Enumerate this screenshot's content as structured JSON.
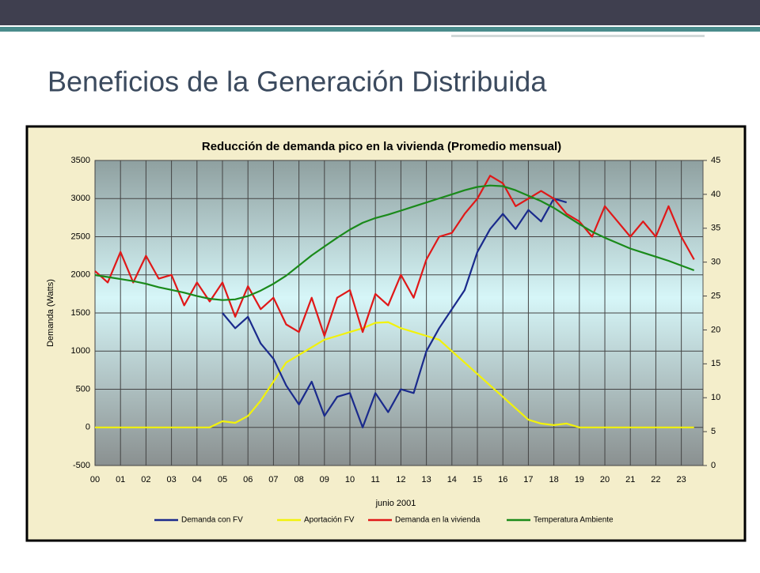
{
  "slide_title": "Beneficios de la Generación Distribuida",
  "chart_data": {
    "type": "line",
    "title": "Reducción de demanda pico en la vivienda (Promedio mensual)",
    "ylabel": "Demanda (Watts)",
    "xlabel": "junio 2001",
    "grid": true,
    "legend": "bottom",
    "xlim": [
      0,
      23.85
    ],
    "xticks": [
      {
        "value": 0,
        "label": "00"
      },
      {
        "value": 1,
        "label": "01"
      },
      {
        "value": 2,
        "label": "02"
      },
      {
        "value": 3,
        "label": "03"
      },
      {
        "value": 4,
        "label": "04"
      },
      {
        "value": 5,
        "label": "05"
      },
      {
        "value": 6,
        "label": "06"
      },
      {
        "value": 7,
        "label": "07"
      },
      {
        "value": 8,
        "label": "08"
      },
      {
        "value": 9,
        "label": "09"
      },
      {
        "value": 10,
        "label": "10"
      },
      {
        "value": 11,
        "label": "11"
      },
      {
        "value": 12,
        "label": "12"
      },
      {
        "value": 13,
        "label": "13"
      },
      {
        "value": 14,
        "label": "14"
      },
      {
        "value": 15,
        "label": "15"
      },
      {
        "value": 16,
        "label": "16"
      },
      {
        "value": 17,
        "label": "17"
      },
      {
        "value": 18,
        "label": "18"
      },
      {
        "value": 19,
        "label": "19"
      },
      {
        "value": 20,
        "label": "20"
      },
      {
        "value": 21,
        "label": "21"
      },
      {
        "value": 22,
        "label": "22"
      },
      {
        "value": 23,
        "label": "23"
      }
    ],
    "ylim": [
      -500,
      3500
    ],
    "yticks": [
      -500,
      0,
      500,
      1000,
      1500,
      2000,
      2500,
      3000,
      3500
    ],
    "y2lim": [
      0,
      45
    ],
    "y2ticks": [
      0,
      5,
      10,
      15,
      20,
      25,
      30,
      35,
      40,
      45
    ],
    "x": [
      0,
      0.5,
      1,
      1.5,
      2,
      2.5,
      3,
      3.5,
      4,
      4.5,
      5,
      5.5,
      6,
      6.5,
      7,
      7.5,
      8,
      8.5,
      9,
      9.5,
      10,
      10.5,
      11,
      11.5,
      12,
      12.5,
      13,
      13.5,
      14,
      14.5,
      15,
      15.5,
      16,
      16.5,
      17,
      17.5,
      18,
      18.5,
      19,
      19.5,
      20,
      20.5,
      21,
      21.5,
      22,
      22.5,
      23,
      23.5
    ],
    "series": [
      {
        "name": "Demanda  con FV",
        "color": "#1a2a8c",
        "values": [
          null,
          null,
          null,
          null,
          null,
          null,
          null,
          null,
          null,
          null,
          1500,
          1300,
          1450,
          1100,
          900,
          550,
          300,
          600,
          150,
          400,
          450,
          0,
          450,
          200,
          500,
          450,
          1000,
          1300,
          1550,
          1800,
          2300,
          2600,
          2800,
          2600,
          2850,
          2700,
          3000,
          2950,
          null,
          null,
          null,
          null,
          null,
          null,
          null,
          null,
          null,
          null
        ]
      },
      {
        "name": "Aportación FV",
        "color": "#f2f20a",
        "values": [
          0,
          0,
          0,
          0,
          0,
          0,
          0,
          0,
          0,
          0,
          80,
          60,
          150,
          350,
          600,
          850,
          950,
          1050,
          1150,
          1200,
          1250,
          1300,
          1370,
          1380,
          1300,
          1250,
          1200,
          1150,
          1000,
          850,
          700,
          550,
          400,
          250,
          100,
          50,
          30,
          50,
          0,
          0,
          0,
          0,
          0,
          0,
          0,
          0,
          0,
          0
        ]
      },
      {
        "name": "Demanda en la vivienda",
        "color": "#e01818",
        "values": [
          2050,
          1900,
          2300,
          1900,
          2250,
          1950,
          2000,
          1600,
          1900,
          1650,
          1900,
          1450,
          1850,
          1550,
          1700,
          1350,
          1250,
          1700,
          1200,
          1700,
          1800,
          1250,
          1750,
          1600,
          2000,
          1700,
          2200,
          2500,
          2550,
          2800,
          3000,
          3300,
          3200,
          2900,
          3000,
          3100,
          3000,
          2800,
          2700,
          2500,
          2900,
          2700,
          2500,
          2700,
          2500,
          2900,
          2500,
          2200
        ]
      },
      {
        "name": "Temperatura Ambiente",
        "color": "#1a8a1a",
        "axis": "y2",
        "values": [
          28.1,
          27.8,
          27.5,
          27.2,
          26.8,
          26.3,
          25.9,
          25.5,
          25,
          24.6,
          24.4,
          24.5,
          25,
          25.8,
          26.8,
          28,
          29.5,
          31,
          32.3,
          33.6,
          34.8,
          35.8,
          36.5,
          37,
          37.6,
          38.2,
          38.8,
          39.4,
          40,
          40.6,
          41.1,
          41.3,
          41.2,
          40.6,
          39.8,
          39,
          38,
          36.8,
          35.6,
          34.5,
          33.6,
          32.8,
          32,
          31.4,
          30.8,
          30.2,
          29.5,
          28.8
        ]
      }
    ]
  }
}
